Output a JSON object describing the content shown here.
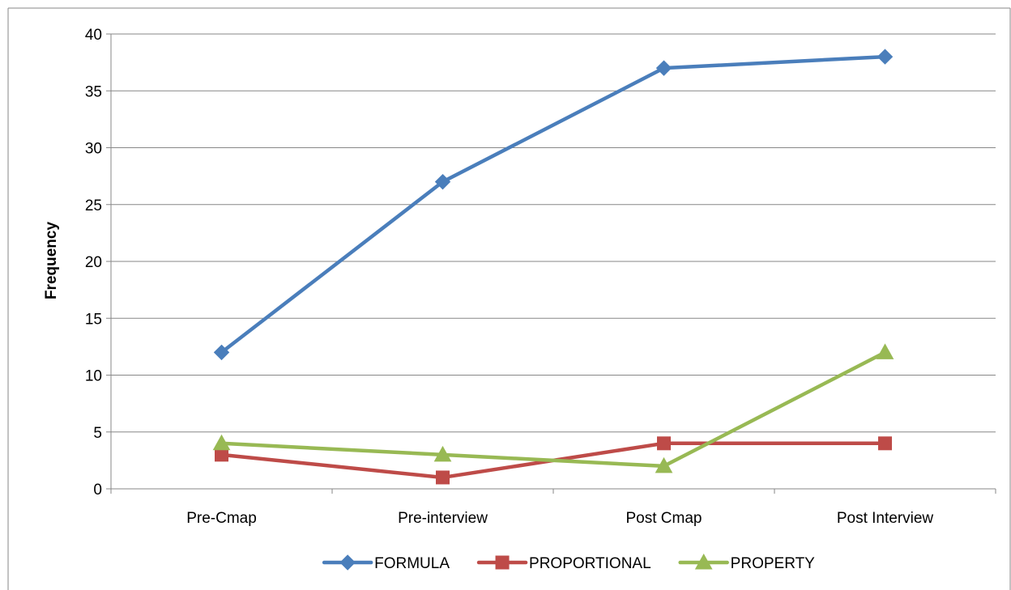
{
  "chart_data": {
    "type": "line",
    "title": "",
    "xlabel": "",
    "ylabel": "Frequency",
    "categories": [
      "Pre-Cmap",
      "Pre-interview",
      "Post Cmap",
      "Post Interview"
    ],
    "ylim": [
      0,
      40
    ],
    "yticks": [
      0,
      5,
      10,
      15,
      20,
      25,
      30,
      35,
      40
    ],
    "grid": true,
    "legend_position": "bottom",
    "series": [
      {
        "name": "FORMULA",
        "values": [
          12,
          27,
          37,
          38
        ],
        "color": "#4a7ebb",
        "marker": "diamond"
      },
      {
        "name": "PROPORTIONAL",
        "values": [
          3,
          1,
          4,
          4
        ],
        "color": "#be4b48",
        "marker": "square"
      },
      {
        "name": "PROPERTY",
        "values": [
          4,
          3,
          2,
          12
        ],
        "color": "#98b954",
        "marker": "triangle"
      }
    ]
  }
}
